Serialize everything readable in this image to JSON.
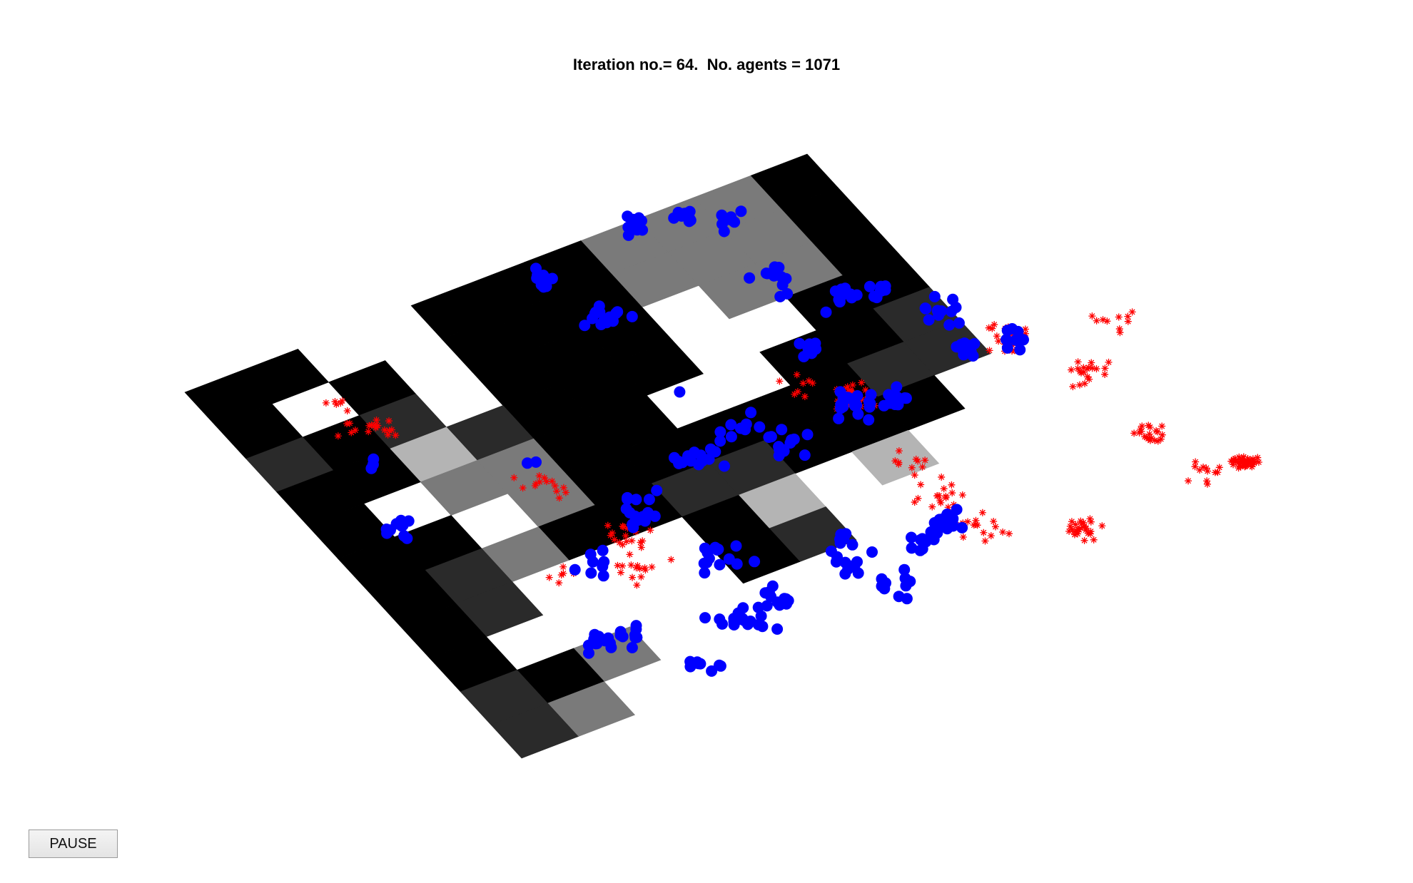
{
  "figure": {
    "title": "Iteration no.= 64.  No. agents = 1071",
    "iteration": 64,
    "agent_count": 1071
  },
  "controls": {
    "pause_label": "PAUSE"
  },
  "colors": {
    "background": "#ffffff",
    "agent_dot": "#0000ff",
    "agent_star": "#ff0000",
    "cell_black": "#000000",
    "cell_dark": "#2a2a2a",
    "cell_gray": "#7a7a7a",
    "cell_light": "#b4b4b4"
  },
  "markers": {
    "dot_agents": "filled-circle",
    "star_agents": "asterisk"
  }
}
